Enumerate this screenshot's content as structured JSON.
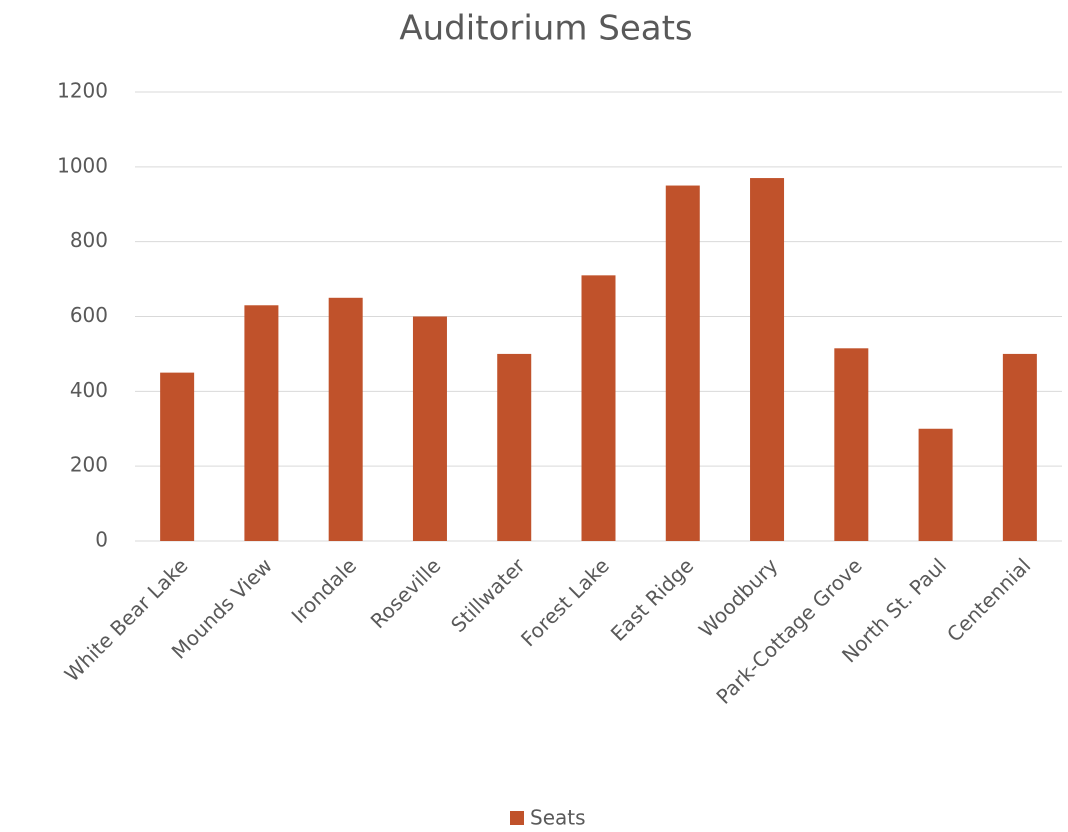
{
  "chart_data": {
    "type": "bar",
    "title": "Auditorium Seats",
    "categories": [
      "White Bear Lake",
      "Mounds View",
      "Irondale",
      "Roseville",
      "Stillwater",
      "Forest Lake",
      "East Ridge",
      "Woodbury",
      "Park-Cottage Grove",
      "North St. Paul",
      "Centennial"
    ],
    "series": [
      {
        "name": "Seats",
        "color": "#c0522b",
        "values": [
          450,
          630,
          650,
          600,
          500,
          710,
          950,
          970,
          515,
          300,
          500
        ]
      }
    ],
    "ylim": [
      0,
      1200
    ],
    "yticks": [
      0,
      200,
      400,
      600,
      800,
      1000,
      1200
    ],
    "grid": true,
    "legend": "bottom"
  }
}
